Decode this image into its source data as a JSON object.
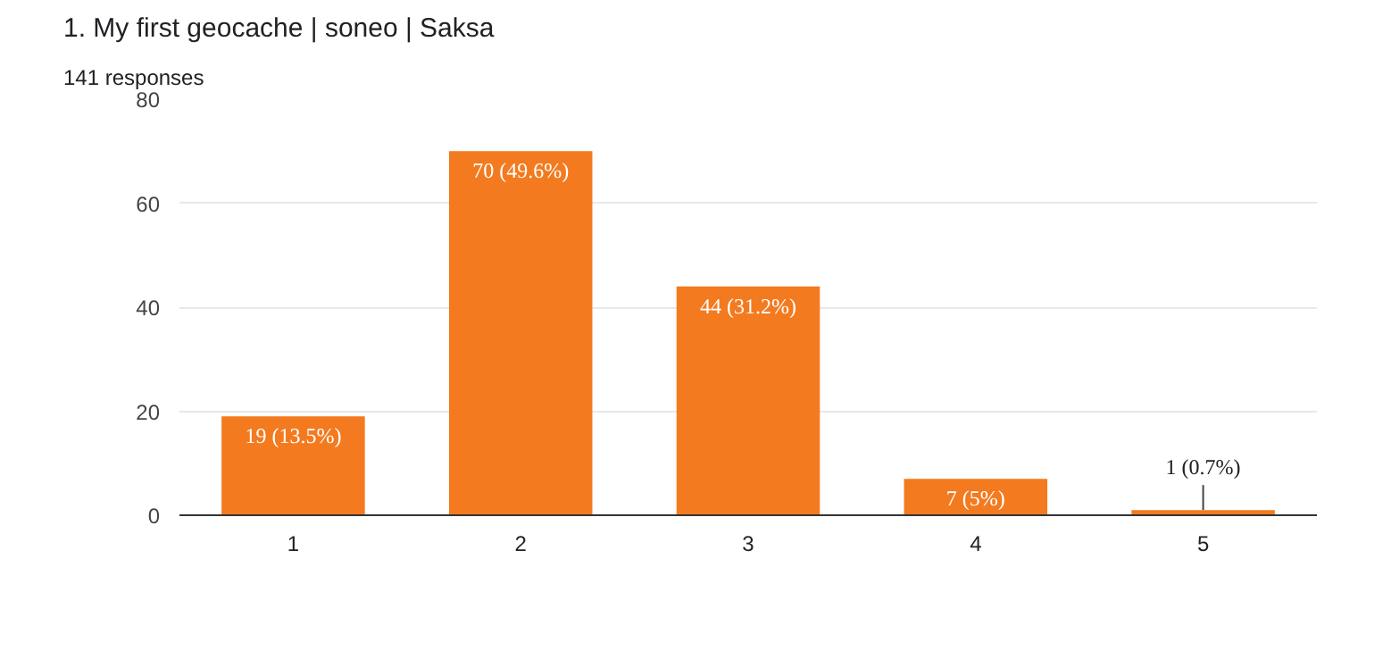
{
  "chart_data": {
    "type": "bar",
    "title": "1. My first geocache | soneo | Saksa",
    "subtitle": "141 responses",
    "categories": [
      "1",
      "2",
      "3",
      "4",
      "5"
    ],
    "values": [
      19,
      70,
      44,
      7,
      1
    ],
    "value_labels": [
      "19 (13.5%)",
      "70 (49.6%)",
      "44 (31.2%)",
      "7 (5%)",
      "1 (0.7%)"
    ],
    "color": "#f37a1f",
    "ylim": [
      0,
      80
    ],
    "yticks": [
      0,
      20,
      40,
      60,
      80
    ],
    "grid": "y"
  }
}
